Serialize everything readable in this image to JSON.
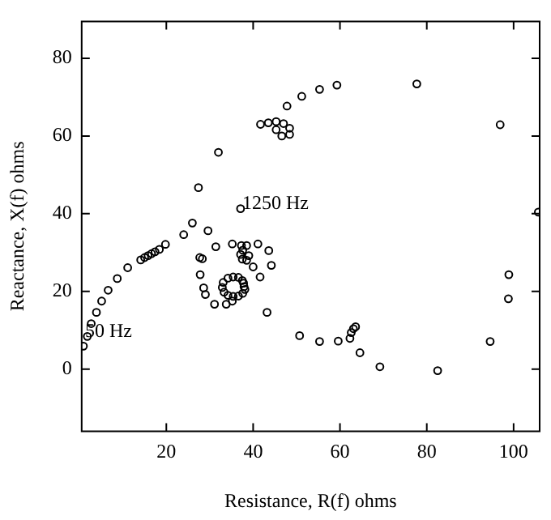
{
  "chart_data": {
    "type": "scatter",
    "xlabel": "Resistance, R(f) ohms",
    "ylabel": "Reactance, X(f) ohms",
    "xlim": [
      0.5,
      106
    ],
    "ylim": [
      -16,
      89.5
    ],
    "xticks": [
      20,
      40,
      60,
      80,
      100
    ],
    "yticks": [
      0,
      20,
      40,
      60,
      80
    ],
    "grid": false,
    "legend": false,
    "marker": "circle",
    "series": [
      {
        "color": "#000000",
        "x": [
          0.9,
          1.8,
          2.7,
          3.9,
          5.1,
          6.6,
          8.7,
          11.1,
          14.1,
          15,
          15.8,
          16.6,
          17.4,
          18.4,
          19.8,
          24,
          26,
          27.4,
          29.6,
          32,
          37.1,
          41.7,
          43.5,
          45.3,
          47,
          48.4,
          45.3,
          46.6,
          48.4,
          47.8,
          51.2,
          55.3,
          59.3,
          77.7,
          96.9,
          105.7,
          27.7,
          28.3,
          27.8,
          28.6,
          29,
          31.4,
          31.1,
          33.8,
          35.2,
          35.2,
          37.3,
          38.5,
          37.6,
          37.1,
          37.5,
          38.5,
          39,
          41.1,
          43.6,
          40,
          44.2,
          41.6,
          43.2,
          37.9,
          37.5,
          36.6,
          35.4,
          34.2,
          33.1,
          32.9,
          33.3,
          34.2,
          35.4,
          36.6,
          37.6,
          38.1,
          37.8,
          50.7,
          55.3,
          59.6,
          62.3,
          62.6,
          63.1,
          63.6,
          64.6,
          69.2,
          82.5,
          94.6,
          98.8,
          98.9
        ],
        "values": [
          5.9,
          8.4,
          11.7,
          14.6,
          17.5,
          20.3,
          23.3,
          26.1,
          28.1,
          28.7,
          29.2,
          29.7,
          30.2,
          30.8,
          32.1,
          34.6,
          37.6,
          46.7,
          35.6,
          55.8,
          41.3,
          63,
          63.4,
          63.7,
          63.2,
          62,
          61.6,
          60,
          60.4,
          67.7,
          70.2,
          72,
          73.1,
          73.4,
          62.9,
          40.4,
          28.7,
          28.4,
          24.3,
          20.9,
          19.2,
          31.5,
          16.7,
          16.7,
          17.5,
          32.2,
          31.8,
          31.8,
          30.6,
          29.5,
          28.3,
          28,
          29.2,
          32.2,
          30.5,
          26.3,
          26.7,
          23.7,
          14.6,
          21.2,
          22.8,
          23.6,
          23.7,
          23.4,
          22.3,
          21,
          19.8,
          19,
          18.7,
          18.8,
          19.5,
          20.5,
          22.1,
          8.6,
          7.1,
          7.2,
          7.9,
          9.4,
          10.4,
          10.9,
          4.2,
          0.6,
          -0.4,
          7.1,
          18.1,
          24.3
        ]
      }
    ],
    "annotations": [
      {
        "text": "1250 Hz",
        "x": 37.1,
        "y": 41.3
      },
      {
        "text": "50 Hz",
        "x": 0.9,
        "y": 8.4
      }
    ]
  }
}
